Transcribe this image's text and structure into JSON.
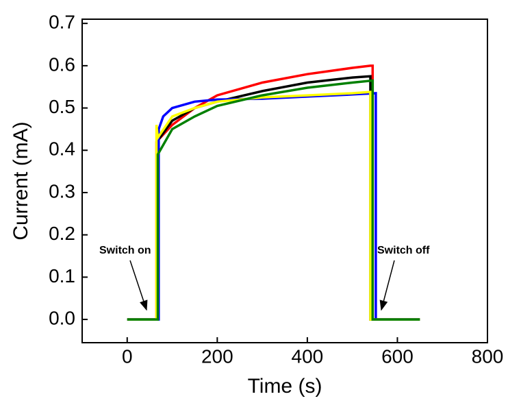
{
  "chart_data": {
    "type": "line",
    "xlabel": "Time (s)",
    "ylabel": "Current (mA)",
    "xlim": [
      -100,
      800
    ],
    "xticks": [
      0,
      200,
      400,
      600,
      800
    ],
    "ylim": [
      -0.055,
      0.71
    ],
    "yticks": [
      {
        "value": 0,
        "label": "0.0"
      },
      0.1,
      0.2,
      0.3,
      0.4,
      0.5,
      0.6,
      0.7
    ],
    "annotations": [
      "Switch on",
      "Switch off"
    ],
    "series": [
      {
        "color": "#ff0000",
        "x": [
          0,
          65,
          65,
          100,
          150,
          200,
          300,
          400,
          500,
          540,
          545,
          545,
          650
        ],
        "values": [
          0,
          0,
          0.42,
          0.46,
          0.5,
          0.53,
          0.56,
          0.58,
          0.595,
          0.6,
          0.6,
          0,
          0
        ]
      },
      {
        "color": "#000000",
        "x": [
          0,
          66,
          66,
          100,
          150,
          200,
          300,
          400,
          500,
          540,
          540,
          650
        ],
        "values": [
          0,
          0,
          0.42,
          0.47,
          0.5,
          0.515,
          0.54,
          0.56,
          0.572,
          0.575,
          0,
          0
        ]
      },
      {
        "color": "#0000ff",
        "x": [
          0,
          70,
          70,
          80,
          100,
          150,
          200,
          300,
          400,
          500,
          552,
          552,
          650
        ],
        "values": [
          0,
          0,
          0.45,
          0.48,
          0.5,
          0.515,
          0.52,
          0.522,
          0.527,
          0.532,
          0.535,
          0,
          0
        ]
      },
      {
        "color": "#ffff00",
        "x": [
          0,
          65,
          65,
          68,
          100,
          150,
          200,
          300,
          400,
          500,
          540,
          540,
          650
        ],
        "values": [
          0,
          0,
          0.46,
          0.43,
          0.48,
          0.5,
          0.515,
          0.525,
          0.53,
          0.535,
          0.538,
          0,
          0
        ]
      },
      {
        "color": "#008000",
        "x": [
          0,
          68,
          68,
          100,
          150,
          200,
          300,
          400,
          500,
          545,
          545,
          650
        ],
        "values": [
          0,
          0,
          0.39,
          0.45,
          0.48,
          0.505,
          0.53,
          0.548,
          0.56,
          0.565,
          0,
          0
        ]
      }
    ]
  }
}
